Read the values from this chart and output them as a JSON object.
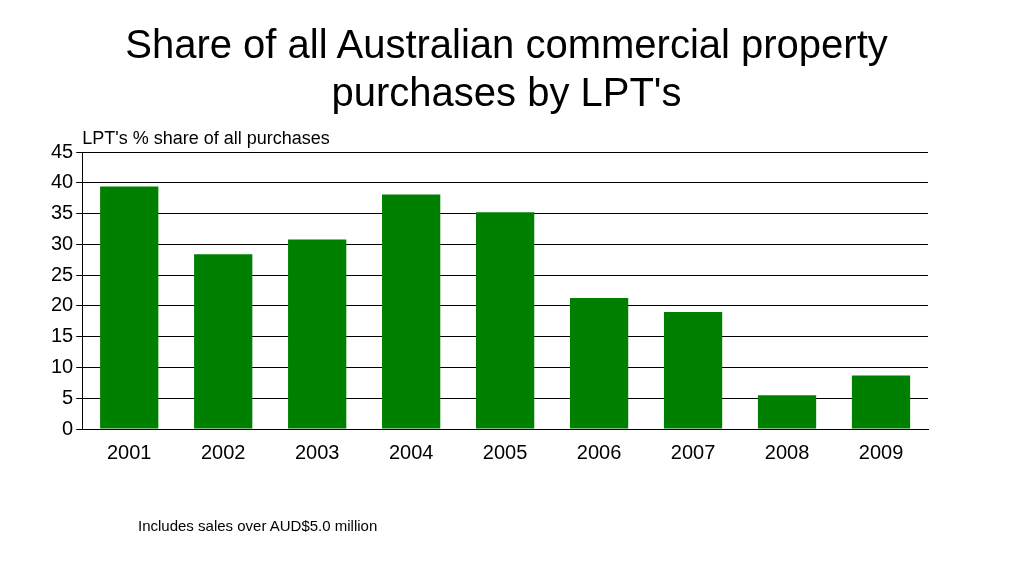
{
  "chart_data": {
    "type": "bar",
    "title": "Share of all Australian commercial property purchases by LPT's",
    "ylabel": "LPT's % share of all purchases",
    "categories": [
      "2001",
      "2002",
      "2003",
      "2004",
      "2005",
      "2006",
      "2007",
      "2008",
      "2009"
    ],
    "values": [
      39.4,
      28.4,
      30.8,
      38.1,
      35.2,
      21.3,
      19.0,
      5.5,
      8.7
    ],
    "color": "#008000",
    "ylim": [
      0,
      45
    ],
    "yticks": [
      0,
      5,
      10,
      15,
      20,
      25,
      30,
      35,
      40,
      45
    ],
    "grid": "y",
    "annotations": [
      "Includes sales over AUD$5.0 million"
    ]
  }
}
